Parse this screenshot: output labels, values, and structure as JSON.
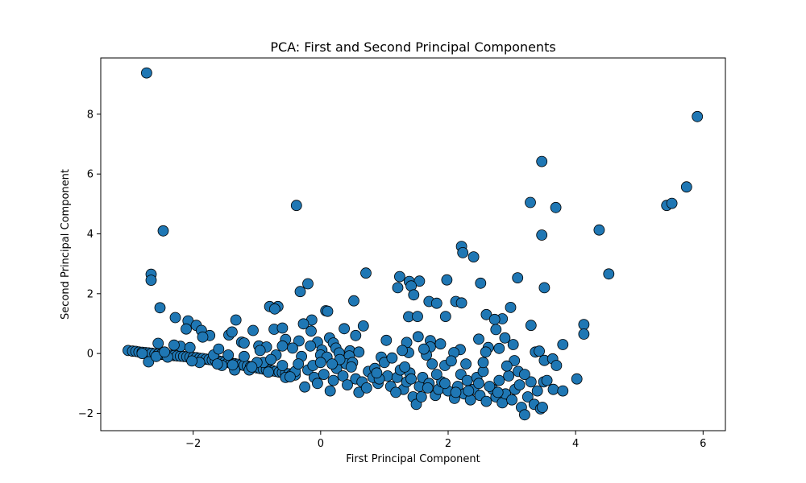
{
  "chart_data": {
    "type": "scatter",
    "title": "PCA: First and Second Principal Components",
    "xlabel": "First Principal Component",
    "ylabel": "Second Principal Component",
    "xlim": [
      -3.45,
      6.35
    ],
    "ylim": [
      -2.58,
      9.88
    ],
    "xticks": [
      -2,
      0,
      2,
      4,
      6
    ],
    "yticks": [
      -2,
      0,
      2,
      4,
      6,
      8
    ],
    "grid": false,
    "marker_color": "#1f77b4",
    "marker_edge": "#000000",
    "points": [
      [
        -2.73,
        9.38
      ],
      [
        5.91,
        7.92
      ],
      [
        3.47,
        6.42
      ],
      [
        5.74,
        5.57
      ],
      [
        -0.38,
        4.95
      ],
      [
        3.29,
        5.05
      ],
      [
        5.43,
        4.95
      ],
      [
        5.51,
        5.02
      ],
      [
        3.69,
        4.88
      ],
      [
        -2.47,
        4.1
      ],
      [
        4.37,
        4.13
      ],
      [
        3.47,
        3.96
      ],
      [
        2.21,
        3.58
      ],
      [
        2.4,
        3.23
      ],
      [
        2.23,
        3.37
      ],
      [
        -2.66,
        2.65
      ],
      [
        -2.66,
        2.45
      ],
      [
        0.71,
        2.69
      ],
      [
        4.52,
        2.66
      ],
      [
        1.24,
        2.57
      ],
      [
        3.09,
        2.53
      ],
      [
        1.39,
        2.41
      ],
      [
        1.55,
        2.42
      ],
      [
        2.51,
        2.35
      ],
      [
        1.98,
        2.46
      ],
      [
        -0.2,
        2.33
      ],
      [
        -0.32,
        2.07
      ],
      [
        1.21,
        2.2
      ],
      [
        1.42,
        2.26
      ],
      [
        3.51,
        2.2
      ],
      [
        1.46,
        1.96
      ],
      [
        -2.52,
        1.53
      ],
      [
        0.52,
        1.76
      ],
      [
        1.7,
        1.74
      ],
      [
        1.82,
        1.68
      ],
      [
        2.12,
        1.74
      ],
      [
        2.21,
        1.69
      ],
      [
        2.98,
        1.54
      ],
      [
        -0.8,
        1.57
      ],
      [
        -0.67,
        1.57
      ],
      [
        -0.72,
        1.49
      ],
      [
        0.08,
        1.43
      ],
      [
        0.11,
        1.41
      ],
      [
        2.6,
        1.3
      ],
      [
        2.85,
        1.16
      ],
      [
        -2.28,
        1.2
      ],
      [
        -2.08,
        1.09
      ],
      [
        -1.33,
        1.12
      ],
      [
        -0.14,
        1.12
      ],
      [
        1.38,
        1.23
      ],
      [
        1.52,
        1.24
      ],
      [
        1.96,
        1.24
      ],
      [
        2.73,
        1.14
      ],
      [
        -0.27,
        0.99
      ],
      [
        4.13,
        0.97
      ],
      [
        3.3,
        0.94
      ],
      [
        -2.11,
        0.82
      ],
      [
        -1.95,
        0.94
      ],
      [
        -1.87,
        0.77
      ],
      [
        -1.06,
        0.77
      ],
      [
        -0.73,
        0.81
      ],
      [
        0.37,
        0.83
      ],
      [
        0.67,
        0.92
      ],
      [
        -0.55,
        0.47
      ],
      [
        0.14,
        0.52
      ],
      [
        0.55,
        0.6
      ],
      [
        1.03,
        0.44
      ],
      [
        1.53,
        0.56
      ],
      [
        2.89,
        0.52
      ],
      [
        4.13,
        0.65
      ],
      [
        2.48,
        0.48
      ],
      [
        -1.74,
        0.6
      ],
      [
        -1.85,
        0.55
      ],
      [
        -1.44,
        0.62
      ],
      [
        -1.39,
        0.72
      ],
      [
        -1.24,
        0.38
      ],
      [
        -2.55,
        0.34
      ],
      [
        -0.34,
        0.42
      ],
      [
        -0.05,
        0.38
      ],
      [
        0.2,
        0.35
      ],
      [
        1.35,
        0.37
      ],
      [
        1.72,
        0.43
      ],
      [
        3.8,
        0.3
      ],
      [
        -0.97,
        0.25
      ],
      [
        -0.85,
        0.22
      ],
      [
        -0.6,
        0.25
      ],
      [
        -0.44,
        0.18
      ],
      [
        -0.16,
        0.25
      ],
      [
        0.02,
        0.11
      ],
      [
        0.24,
        0.18
      ],
      [
        0.46,
        0.09
      ],
      [
        1.72,
        0.22
      ],
      [
        2.19,
        0.13
      ],
      [
        2.63,
        0.2
      ],
      [
        2.8,
        0.17
      ],
      [
        3.37,
        0.05
      ],
      [
        3.43,
        0.08
      ],
      [
        0.0,
        -0.05
      ],
      [
        0.1,
        -0.12
      ],
      [
        0.29,
        0.02
      ],
      [
        0.45,
        -0.08
      ],
      [
        0.95,
        -0.12
      ],
      [
        1.38,
        0.03
      ],
      [
        1.66,
        -0.05
      ],
      [
        2.09,
        0.03
      ],
      [
        2.59,
        0.05
      ],
      [
        3.04,
        -0.24
      ],
      [
        3.51,
        -0.23
      ],
      [
        3.64,
        -0.18
      ],
      [
        -3.02,
        0.1
      ],
      [
        -2.95,
        0.08
      ],
      [
        -2.9,
        0.07
      ],
      [
        -2.85,
        0.05
      ],
      [
        -2.8,
        0.04
      ],
      [
        -2.75,
        0.03
      ],
      [
        -2.7,
        0.02
      ],
      [
        -2.65,
        0.01
      ],
      [
        -2.6,
        -0.01
      ],
      [
        -2.55,
        -0.02
      ],
      [
        -2.5,
        -0.03
      ],
      [
        -2.45,
        -0.04
      ],
      [
        -2.4,
        -0.05
      ],
      [
        -2.35,
        -0.06
      ],
      [
        -2.3,
        -0.07
      ],
      [
        -2.25,
        -0.08
      ],
      [
        -2.2,
        -0.09
      ],
      [
        -2.15,
        -0.1
      ],
      [
        -2.1,
        -0.11
      ],
      [
        -2.05,
        -0.12
      ],
      [
        -2.0,
        -0.13
      ],
      [
        -1.95,
        -0.14
      ],
      [
        -1.9,
        -0.16
      ],
      [
        -1.85,
        -0.17
      ],
      [
        -1.8,
        -0.19
      ],
      [
        -1.75,
        -0.2
      ],
      [
        -1.7,
        -0.22
      ],
      [
        -1.65,
        -0.23
      ],
      [
        -1.6,
        -0.25
      ],
      [
        -1.55,
        -0.27
      ],
      [
        -1.5,
        -0.28
      ],
      [
        -1.45,
        -0.3
      ],
      [
        -1.4,
        -0.32
      ],
      [
        -1.35,
        -0.34
      ],
      [
        -1.3,
        -0.36
      ],
      [
        -1.25,
        -0.38
      ],
      [
        -1.2,
        -0.4
      ],
      [
        -1.15,
        -0.42
      ],
      [
        -1.1,
        -0.44
      ],
      [
        -1.05,
        -0.46
      ],
      [
        -1.0,
        -0.48
      ],
      [
        -0.95,
        -0.5
      ],
      [
        -0.9,
        -0.52
      ],
      [
        -0.85,
        -0.54
      ],
      [
        -0.8,
        -0.56
      ],
      [
        -0.75,
        -0.58
      ],
      [
        -0.7,
        -0.6
      ],
      [
        -0.65,
        -0.62
      ],
      [
        -0.6,
        -0.64
      ],
      [
        -0.55,
        -0.66
      ],
      [
        -0.5,
        -0.68
      ],
      [
        -0.45,
        -0.7
      ],
      [
        -0.4,
        -0.72
      ],
      [
        -2.7,
        -0.28
      ],
      [
        -2.2,
        0.24
      ],
      [
        -2.3,
        0.28
      ],
      [
        -1.68,
        -0.05
      ],
      [
        -1.35,
        -0.55
      ],
      [
        -1.55,
        -0.4
      ],
      [
        -1.2,
        -0.1
      ],
      [
        -0.9,
        -0.3
      ],
      [
        -0.6,
        -0.4
      ],
      [
        -0.55,
        -0.8
      ],
      [
        -0.4,
        -0.6
      ],
      [
        -0.3,
        -0.1
      ],
      [
        -0.25,
        -1.12
      ],
      [
        -0.2,
        -0.55
      ],
      [
        -0.1,
        -0.8
      ],
      [
        -0.05,
        -1.0
      ],
      [
        0.05,
        -0.7
      ],
      [
        0.15,
        -1.25
      ],
      [
        0.2,
        -0.9
      ],
      [
        0.25,
        -0.5
      ],
      [
        0.35,
        -0.75
      ],
      [
        0.4,
        -0.35
      ],
      [
        0.5,
        -0.3
      ],
      [
        0.55,
        -0.85
      ],
      [
        0.6,
        -1.3
      ],
      [
        0.65,
        -0.95
      ],
      [
        0.75,
        -0.6
      ],
      [
        0.85,
        -0.5
      ],
      [
        0.9,
        -1.0
      ],
      [
        1.0,
        -0.3
      ],
      [
        1.05,
        -0.75
      ],
      [
        1.1,
        -1.1
      ],
      [
        1.2,
        -0.8
      ],
      [
        1.25,
        -0.55
      ],
      [
        1.3,
        -1.2
      ],
      [
        1.35,
        -0.95
      ],
      [
        1.4,
        -0.65
      ],
      [
        1.45,
        -1.45
      ],
      [
        1.5,
        -1.7
      ],
      [
        1.55,
        -1.1
      ],
      [
        1.6,
        -0.8
      ],
      [
        1.7,
        -1.0
      ],
      [
        1.75,
        -0.35
      ],
      [
        1.8,
        -1.4
      ],
      [
        1.85,
        -1.2
      ],
      [
        1.9,
        -0.95
      ],
      [
        1.95,
        -0.4
      ],
      [
        2.0,
        -1.25
      ],
      [
        2.1,
        -1.5
      ],
      [
        2.15,
        -1.1
      ],
      [
        2.2,
        -0.7
      ],
      [
        2.25,
        -1.35
      ],
      [
        2.3,
        -0.9
      ],
      [
        2.35,
        -1.55
      ],
      [
        2.4,
        -1.2
      ],
      [
        2.45,
        -0.8
      ],
      [
        2.5,
        -1.4
      ],
      [
        2.55,
        -0.6
      ],
      [
        2.6,
        -1.6
      ],
      [
        2.7,
        -1.2
      ],
      [
        2.75,
        -1.45
      ],
      [
        2.8,
        -0.9
      ],
      [
        2.85,
        -1.65
      ],
      [
        2.9,
        -1.35
      ],
      [
        2.95,
        -0.75
      ],
      [
        3.0,
        -1.55
      ],
      [
        3.05,
        -1.2
      ],
      [
        3.1,
        -0.6
      ],
      [
        3.15,
        -1.8
      ],
      [
        3.2,
        -2.05
      ],
      [
        3.25,
        -1.45
      ],
      [
        3.3,
        -0.95
      ],
      [
        3.35,
        -1.7
      ],
      [
        3.4,
        -1.25
      ],
      [
        3.45,
        -1.85
      ],
      [
        3.5,
        -0.95
      ],
      [
        3.65,
        -1.2
      ],
      [
        3.8,
        -1.25
      ],
      [
        4.02,
        -0.85
      ],
      [
        3.48,
        -1.8
      ],
      [
        2.92,
        -0.42
      ],
      [
        2.65,
        -1.1
      ],
      [
        2.05,
        -0.25
      ],
      [
        1.62,
        0.15
      ],
      [
        1.12,
        -0.15
      ],
      [
        0.82,
        -0.8
      ],
      [
        0.3,
        -0.2
      ],
      [
        -0.12,
        -0.4
      ],
      [
        -0.7,
        -0.05
      ],
      [
        -1.0,
        -0.3
      ],
      [
        -1.45,
        -0.05
      ],
      [
        -1.9,
        -0.3
      ],
      [
        -2.4,
        -0.12
      ],
      [
        -2.8,
        0.0
      ],
      [
        -2.58,
        -0.1
      ],
      [
        -2.02,
        -0.25
      ],
      [
        -1.62,
        -0.35
      ],
      [
        -1.12,
        -0.55
      ],
      [
        -0.82,
        -0.62
      ],
      [
        -0.48,
        -0.78
      ],
      [
        0.42,
        -1.05
      ],
      [
        0.72,
        -1.15
      ],
      [
        1.18,
        -1.3
      ],
      [
        1.58,
        -1.45
      ],
      [
        1.95,
        -1.0
      ],
      [
        2.32,
        -1.25
      ],
      [
        2.78,
        -1.3
      ],
      [
        3.12,
        -1.05
      ],
      [
        3.55,
        -0.9
      ],
      [
        3.7,
        -0.4
      ],
      [
        -0.15,
        0.75
      ],
      [
        0.6,
        0.05
      ],
      [
        1.28,
        0.1
      ],
      [
        1.88,
        0.32
      ],
      [
        2.28,
        -0.35
      ],
      [
        2.75,
        0.8
      ],
      [
        3.02,
        0.3
      ],
      [
        -0.6,
        0.85
      ],
      [
        -1.2,
        0.35
      ],
      [
        -1.6,
        0.15
      ],
      [
        -2.45,
        0.05
      ],
      [
        -2.05,
        0.2
      ],
      [
        -0.95,
        0.1
      ],
      [
        0.18,
        -0.35
      ],
      [
        0.92,
        -0.85
      ],
      [
        1.42,
        -0.85
      ],
      [
        1.82,
        -0.7
      ],
      [
        2.55,
        -0.3
      ],
      [
        3.2,
        -0.7
      ],
      [
        2.48,
        -1.0
      ],
      [
        2.12,
        -1.3
      ],
      [
        1.68,
        -1.15
      ],
      [
        1.32,
        -0.45
      ],
      [
        0.88,
        -0.65
      ],
      [
        0.48,
        -0.45
      ],
      [
        0.0,
        -0.3
      ],
      [
        -0.35,
        -0.35
      ],
      [
        -0.78,
        -0.2
      ],
      [
        -1.08,
        -0.45
      ],
      [
        -1.38,
        -0.38
      ]
    ]
  }
}
